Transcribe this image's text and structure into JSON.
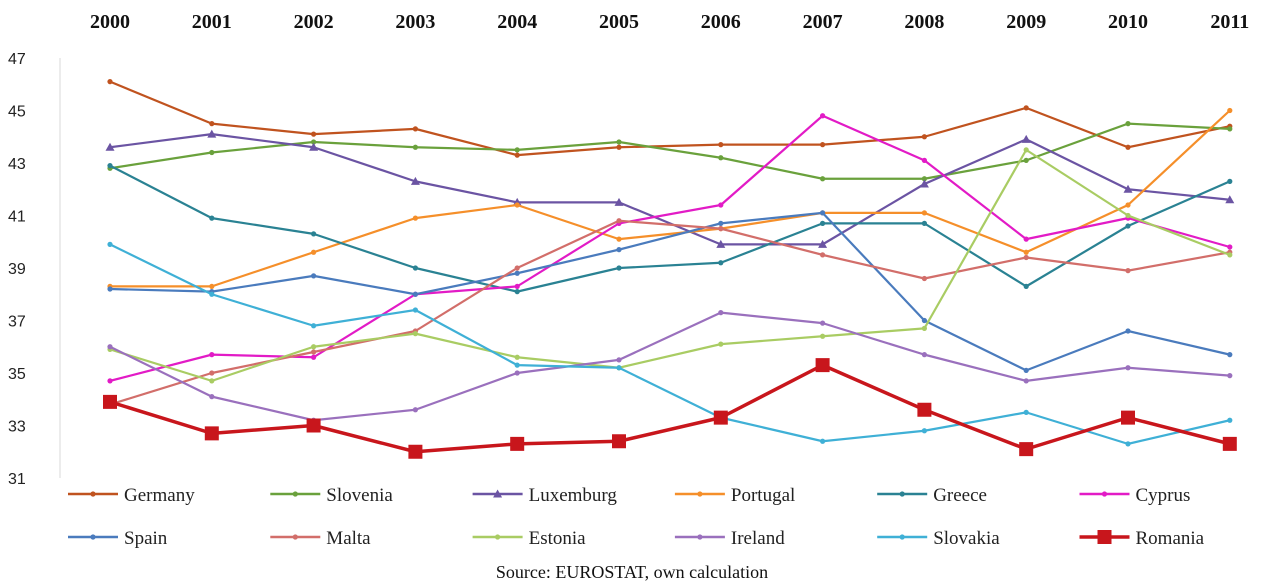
{
  "chart_data": {
    "type": "line",
    "title": "",
    "xlabel": "",
    "ylabel": "",
    "categories": [
      "2000",
      "2001",
      "2002",
      "2003",
      "2004",
      "2005",
      "2006",
      "2007",
      "2008",
      "2009",
      "2010",
      "2011"
    ],
    "ylim": [
      31,
      47
    ],
    "yticks": [
      31,
      33,
      35,
      37,
      39,
      41,
      43,
      45,
      47
    ],
    "grid": false,
    "legend_position": "bottom",
    "source_note": "Source: EUROSTAT, own calculation",
    "series": [
      {
        "name": "Germany",
        "color": "#c0531f",
        "marker": "dot",
        "values": [
          46.1,
          44.5,
          44.1,
          44.3,
          43.3,
          43.6,
          43.7,
          43.7,
          44.0,
          45.1,
          43.6,
          44.4
        ]
      },
      {
        "name": "Slovenia",
        "color": "#6aa13c",
        "marker": "dot",
        "values": [
          42.8,
          43.4,
          43.8,
          43.6,
          43.5,
          43.8,
          43.2,
          42.4,
          42.4,
          43.1,
          44.5,
          44.3
        ]
      },
      {
        "name": "Luxemburg",
        "color": "#6b54a3",
        "marker": "triangle",
        "values": [
          43.6,
          44.1,
          43.6,
          42.3,
          41.5,
          41.5,
          39.9,
          39.9,
          42.2,
          43.9,
          42.0,
          41.6
        ]
      },
      {
        "name": "Portugal",
        "color": "#f58f2a",
        "marker": "dot",
        "values": [
          38.3,
          38.3,
          39.6,
          40.9,
          41.4,
          40.1,
          40.5,
          41.1,
          41.1,
          39.6,
          41.4,
          45.0
        ]
      },
      {
        "name": "Greece",
        "color": "#2a8293",
        "marker": "dot",
        "values": [
          42.9,
          40.9,
          40.3,
          39.0,
          38.1,
          39.0,
          39.2,
          40.7,
          40.7,
          38.3,
          40.6,
          42.3
        ]
      },
      {
        "name": "Cyprus",
        "color": "#e21bc6",
        "marker": "dot",
        "values": [
          34.7,
          35.7,
          35.6,
          38.0,
          38.3,
          40.7,
          41.4,
          44.8,
          43.1,
          40.1,
          40.9,
          39.8
        ]
      },
      {
        "name": "Spain",
        "color": "#4a7bbd",
        "marker": "dot",
        "values": [
          38.2,
          38.1,
          38.7,
          38.0,
          38.8,
          39.7,
          40.7,
          41.1,
          37.0,
          35.1,
          36.6,
          35.7
        ]
      },
      {
        "name": "Malta",
        "color": "#d26e6a",
        "marker": "dot",
        "values": [
          33.8,
          35.0,
          35.8,
          36.6,
          39.0,
          40.8,
          40.5,
          39.5,
          38.6,
          39.4,
          38.9,
          39.6
        ]
      },
      {
        "name": "Estonia",
        "color": "#a9cc63",
        "marker": "dot",
        "values": [
          35.9,
          34.7,
          36.0,
          36.5,
          35.6,
          35.2,
          36.1,
          36.4,
          36.7,
          43.5,
          41.0,
          39.5
        ]
      },
      {
        "name": "Ireland",
        "color": "#9a70bd",
        "marker": "dot",
        "values": [
          36.0,
          34.1,
          33.2,
          33.6,
          35.0,
          35.5,
          37.3,
          36.9,
          35.7,
          34.7,
          35.2,
          34.9
        ]
      },
      {
        "name": "Slovakia",
        "color": "#3fb0d6",
        "marker": "dot",
        "values": [
          39.9,
          38.0,
          36.8,
          37.4,
          35.3,
          35.2,
          33.3,
          32.4,
          32.8,
          33.5,
          32.3,
          33.2
        ]
      },
      {
        "name": "Romania",
        "color": "#c8161c",
        "marker": "square",
        "values": [
          33.9,
          32.7,
          33.0,
          32.0,
          32.3,
          32.4,
          33.3,
          35.3,
          33.6,
          32.1,
          33.3,
          32.3
        ]
      }
    ]
  }
}
